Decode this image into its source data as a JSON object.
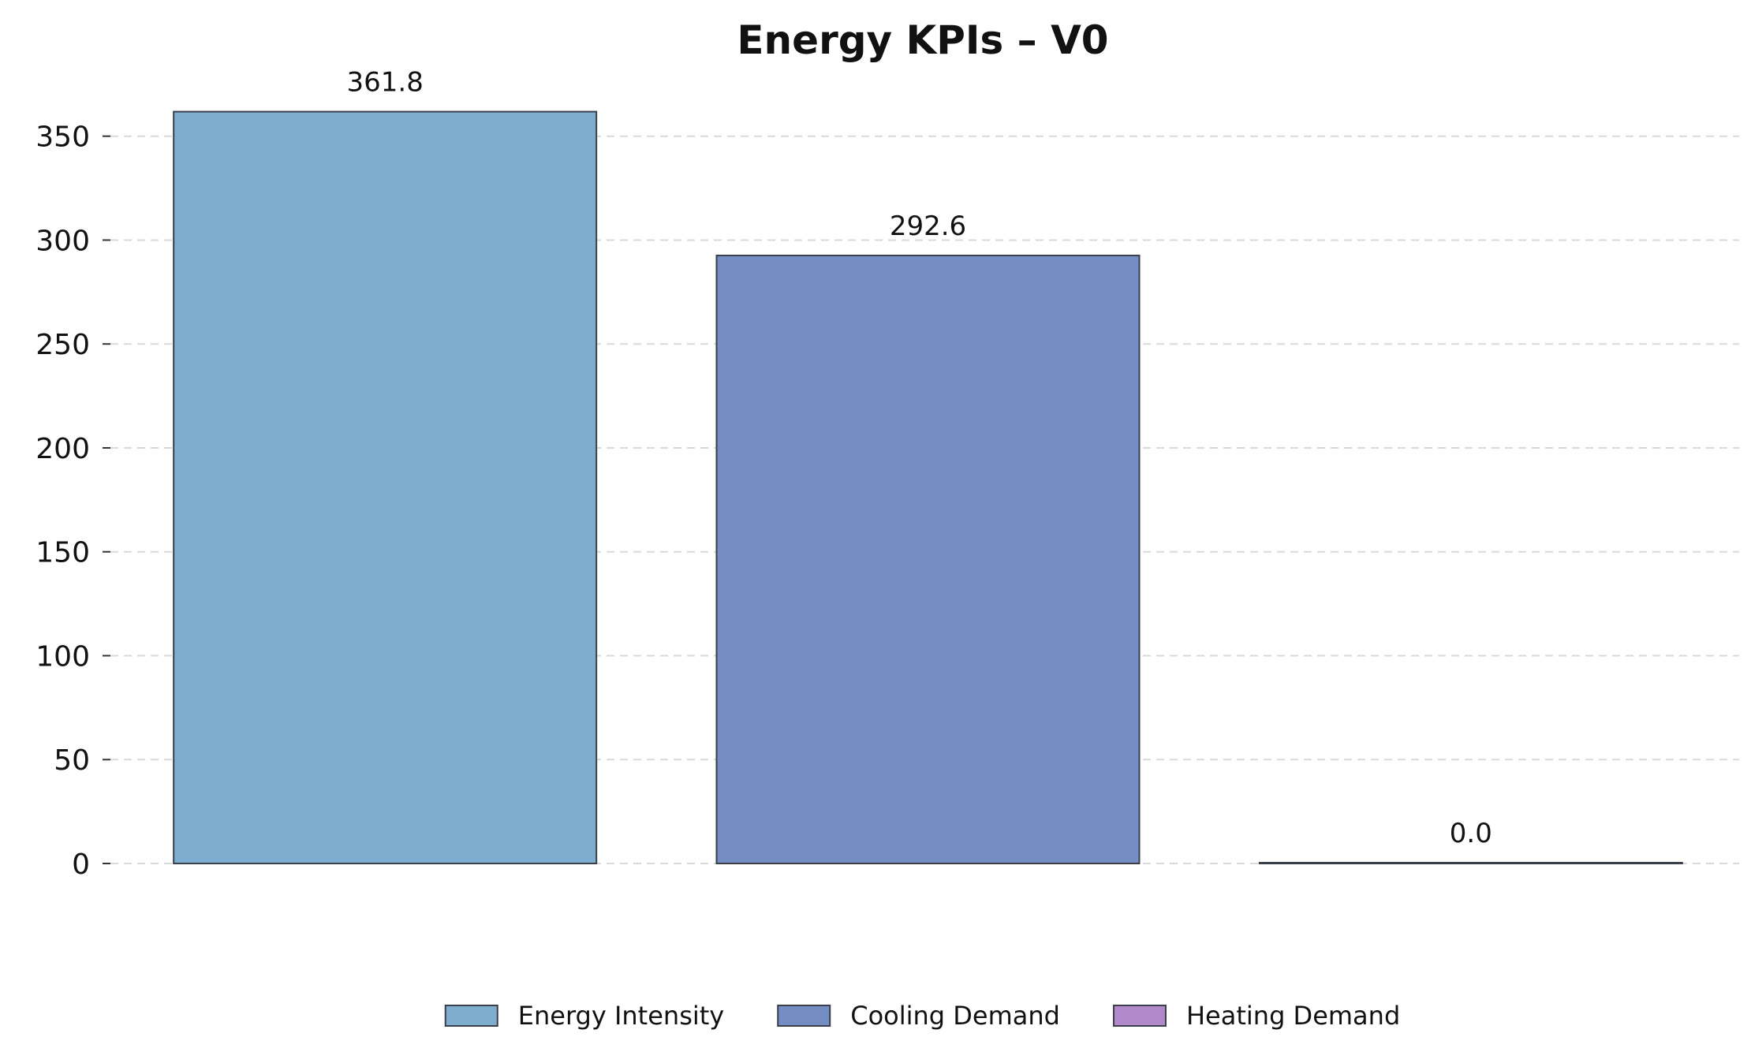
{
  "chart_data": {
    "type": "bar",
    "title": "Energy KPIs – V0",
    "xlabel": "",
    "ylabel": "",
    "categories": [
      "Energy Intensity",
      "Cooling Demand",
      "Heating Demand"
    ],
    "values": [
      361.8,
      292.6,
      0.0
    ],
    "value_labels": [
      "361.8",
      "292.6",
      "0.0"
    ],
    "colors": [
      "#7eadd0",
      "#748dc3",
      "#b188c9"
    ],
    "ylim": [
      0,
      370
    ],
    "yticks": [
      0,
      50,
      100,
      150,
      200,
      250,
      300,
      350
    ],
    "ytick_labels": [
      "0",
      "50",
      "100",
      "150",
      "200",
      "250",
      "300",
      "350"
    ],
    "grid": true,
    "legend": {
      "placement": "bottom-center",
      "entries": [
        "Energy Intensity",
        "Cooling Demand",
        "Heating Demand"
      ]
    }
  }
}
